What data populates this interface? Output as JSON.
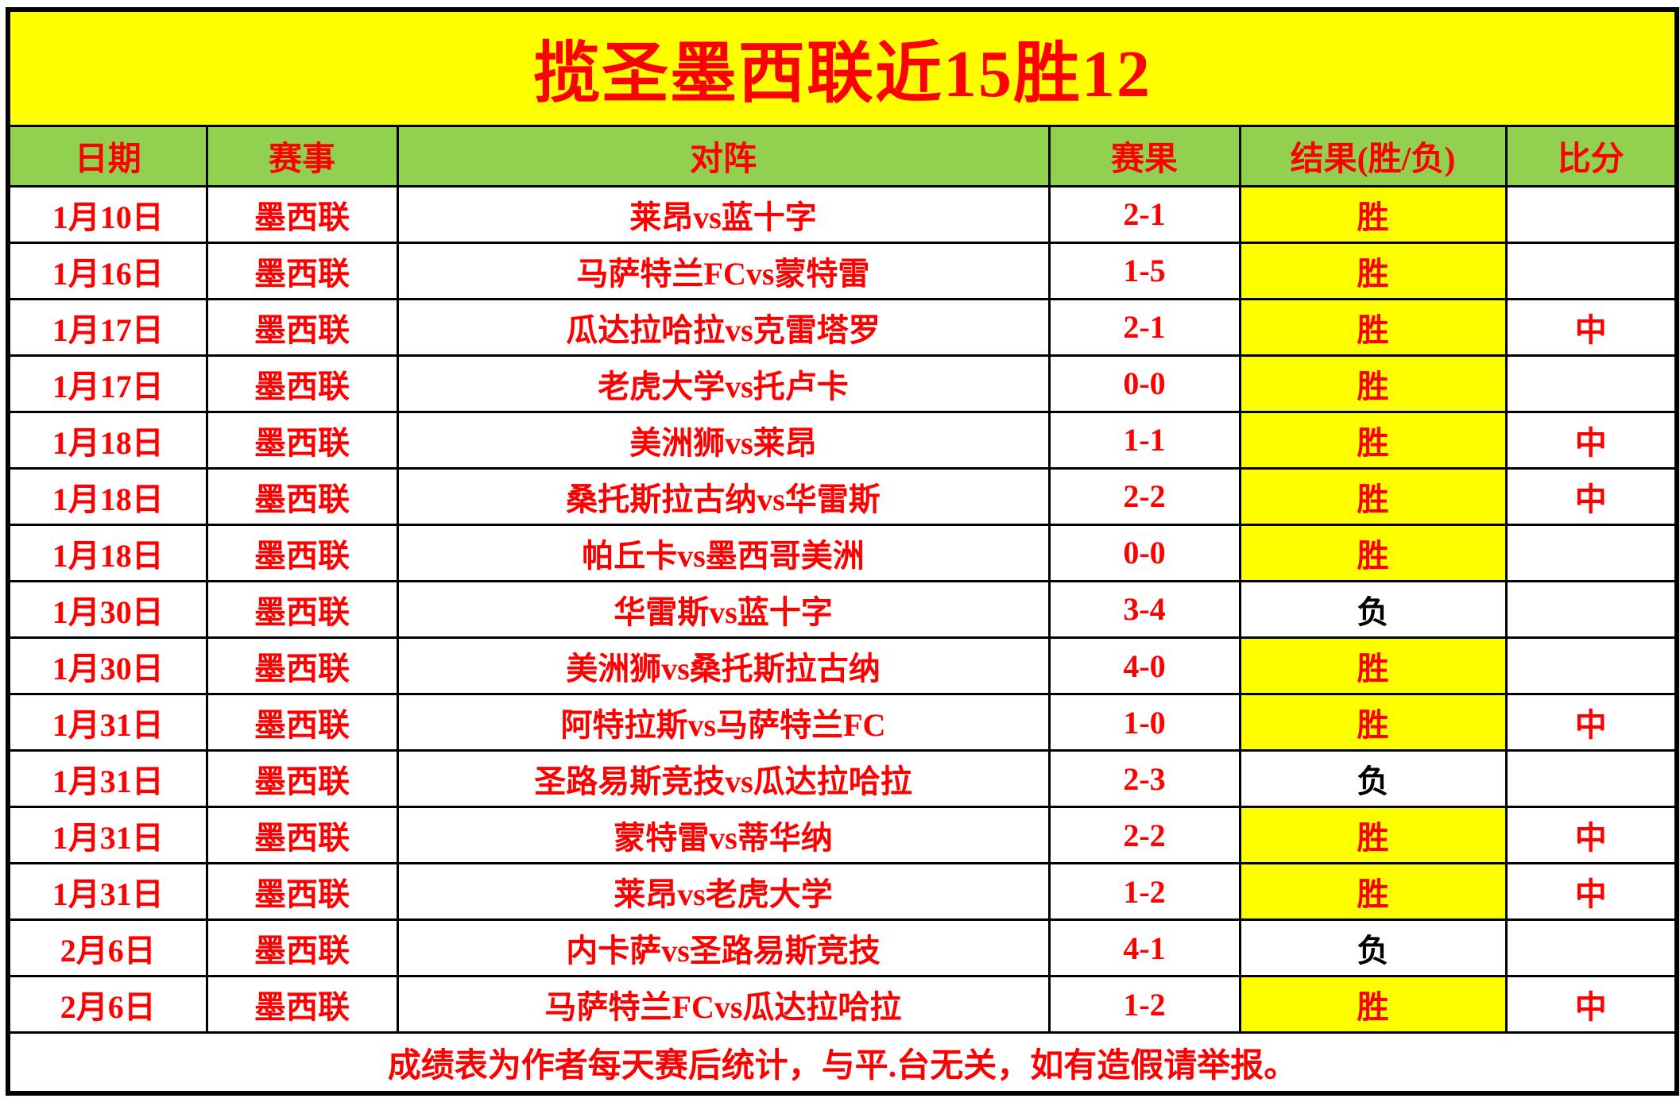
{
  "chart_data": {
    "type": "table",
    "title": "揽圣墨西联近15胜12",
    "columns": [
      "日期",
      "赛事",
      "对阵",
      "赛果",
      "结果(胜/负)",
      "比分"
    ],
    "rows": [
      [
        "1月10日",
        "墨西联",
        "莱昂vs蓝十字",
        "2-1",
        "胜",
        ""
      ],
      [
        "1月16日",
        "墨西联",
        "马萨特兰FCvs蒙特雷",
        "1-5",
        "胜",
        ""
      ],
      [
        "1月17日",
        "墨西联",
        "瓜达拉哈拉vs克雷塔罗",
        "2-1",
        "胜",
        "中"
      ],
      [
        "1月17日",
        "墨西联",
        "老虎大学vs托卢卡",
        "0-0",
        "胜",
        ""
      ],
      [
        "1月18日",
        "墨西联",
        "美洲狮vs莱昂",
        "1-1",
        "胜",
        "中"
      ],
      [
        "1月18日",
        "墨西联",
        "桑托斯拉古纳vs华雷斯",
        "2-2",
        "胜",
        "中"
      ],
      [
        "1月18日",
        "墨西联",
        "帕丘卡vs墨西哥美洲",
        "0-0",
        "胜",
        ""
      ],
      [
        "1月30日",
        "墨西联",
        "华雷斯vs蓝十字",
        "3-4",
        "负",
        ""
      ],
      [
        "1月30日",
        "墨西联",
        "美洲狮vs桑托斯拉古纳",
        "4-0",
        "胜",
        ""
      ],
      [
        "1月31日",
        "墨西联",
        "阿特拉斯vs马萨特兰FC",
        "1-0",
        "胜",
        "中"
      ],
      [
        "1月31日",
        "墨西联",
        "圣路易斯竞技vs瓜达拉哈拉",
        "2-3",
        "负",
        ""
      ],
      [
        "1月31日",
        "墨西联",
        "蒙特雷vs蒂华纳",
        "2-2",
        "胜",
        "中"
      ],
      [
        "1月31日",
        "墨西联",
        "莱昂vs老虎大学",
        "1-2",
        "胜",
        "中"
      ],
      [
        "2月6日",
        "墨西联",
        "内卡萨vs圣路易斯竞技",
        "4-1",
        "负",
        ""
      ],
      [
        "2月6日",
        "墨西联",
        "马萨特兰FCvs瓜达拉哈拉",
        "1-2",
        "胜",
        "中"
      ]
    ],
    "footer": "成绩表为作者每天赛后统计，与平.台无关，如有造假请举报。",
    "layout_hints": {
      "grid": true,
      "win_count": 12,
      "loss_count": 3,
      "total_rows": 15
    }
  },
  "legend": {
    "win": "胜",
    "loss": "负",
    "hit": "中"
  },
  "colors": {
    "title_bg": "#ffff00",
    "header_bg": "#92d050",
    "win_bg": "#ffff00",
    "text_red": "#ff0000",
    "loss_text": "#000000",
    "border": "#000000",
    "row_bg": "#ffffff"
  }
}
